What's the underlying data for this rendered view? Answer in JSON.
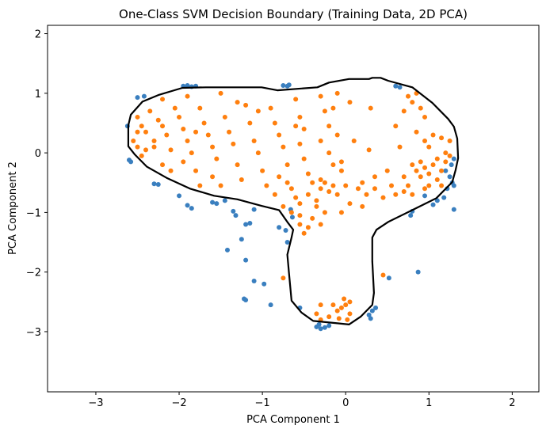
{
  "chart_data": {
    "type": "scatter",
    "title": "One-Class SVM Decision Boundary (Training Data, 2D PCA)",
    "xlabel": "PCA Component 1",
    "ylabel": "PCA Component 2",
    "xlim": [
      -3.58,
      2.32
    ],
    "ylim": [
      -4.01,
      2.14
    ],
    "xticks": [
      -3,
      -2,
      -1,
      0,
      1,
      2
    ],
    "yticks": [
      2,
      1,
      0,
      -1,
      -2,
      -3
    ],
    "xtick_labels": [
      "−3",
      "−2",
      "−1",
      "0",
      "1",
      "2"
    ],
    "ytick_labels": [
      "2",
      "1",
      "0",
      "−1",
      "−2",
      "−3"
    ],
    "grid": false,
    "series": [
      {
        "color": "#3a7fbf",
        "points": [
          [
            -1.95,
            1.12
          ],
          [
            -1.9,
            1.13
          ],
          [
            -1.85,
            1.11
          ],
          [
            -1.8,
            1.12
          ],
          [
            -0.75,
            1.13
          ],
          [
            -0.7,
            1.12
          ],
          [
            -0.68,
            1.14
          ],
          [
            -2.5,
            0.93
          ],
          [
            -2.42,
            0.95
          ],
          [
            -2.62,
            0.45
          ],
          [
            -2.6,
            -0.12
          ],
          [
            -2.58,
            -0.15
          ],
          [
            -2.3,
            -0.52
          ],
          [
            -2.25,
            -0.53
          ],
          [
            -1.9,
            -0.88
          ],
          [
            -1.85,
            -0.93
          ],
          [
            -1.6,
            -0.83
          ],
          [
            -1.55,
            -0.85
          ],
          [
            -1.35,
            -0.98
          ],
          [
            -1.32,
            -1.05
          ],
          [
            -1.2,
            -1.2
          ],
          [
            -1.15,
            -1.18
          ],
          [
            -1.25,
            -1.45
          ],
          [
            -1.42,
            -1.63
          ],
          [
            -1.2,
            -1.8
          ],
          [
            -1.1,
            -2.15
          ],
          [
            -0.98,
            -2.2
          ],
          [
            -1.22,
            -2.45
          ],
          [
            -1.2,
            -2.47
          ],
          [
            -0.9,
            -2.55
          ],
          [
            -0.72,
            -1.3
          ],
          [
            -0.7,
            -1.5
          ],
          [
            -0.66,
            -0.95
          ],
          [
            -0.64,
            -1.08
          ],
          [
            -0.8,
            -1.25
          ],
          [
            -0.35,
            -2.92
          ],
          [
            -0.3,
            -2.95
          ],
          [
            -0.25,
            -2.93
          ],
          [
            -0.32,
            -2.88
          ],
          [
            -0.2,
            -2.9
          ],
          [
            -0.55,
            -2.6
          ],
          [
            0.28,
            -2.72
          ],
          [
            0.32,
            -2.65
          ],
          [
            0.36,
            -2.6
          ],
          [
            0.3,
            -2.78
          ],
          [
            0.52,
            -2.1
          ],
          [
            0.87,
            -2.0
          ],
          [
            1.2,
            -0.3
          ],
          [
            1.25,
            -0.4
          ],
          [
            1.28,
            -0.5
          ],
          [
            1.22,
            -0.6
          ],
          [
            1.3,
            -0.55
          ],
          [
            1.18,
            -0.75
          ],
          [
            1.1,
            -0.8
          ],
          [
            1.3,
            -0.95
          ],
          [
            1.05,
            -0.87
          ],
          [
            0.95,
            -0.72
          ],
          [
            0.78,
            -1.05
          ],
          [
            0.8,
            -0.98
          ],
          [
            1.27,
            -0.2
          ],
          [
            1.3,
            -0.1
          ],
          [
            0.6,
            1.12
          ],
          [
            0.65,
            1.1
          ],
          [
            -1.45,
            -0.8
          ],
          [
            -2.0,
            -0.72
          ],
          [
            -1.1,
            -0.95
          ]
        ]
      },
      {
        "color": "#ff7f0e",
        "points": [
          [
            -2.5,
            0.6
          ],
          [
            -2.45,
            0.45
          ],
          [
            -2.4,
            0.35
          ],
          [
            -2.55,
            0.2
          ],
          [
            -2.5,
            0.1
          ],
          [
            -2.4,
            0.05
          ],
          [
            -2.45,
            -0.05
          ],
          [
            -2.3,
            0.2
          ],
          [
            -2.25,
            0.55
          ],
          [
            -2.2,
            0.45
          ],
          [
            -2.15,
            0.3
          ],
          [
            -2.1,
            0.05
          ],
          [
            -2.2,
            -0.2
          ],
          [
            -2.1,
            -0.3
          ],
          [
            -2.0,
            0.6
          ],
          [
            -1.95,
            0.4
          ],
          [
            -1.9,
            0.2
          ],
          [
            -1.85,
            0.0
          ],
          [
            -1.95,
            -0.15
          ],
          [
            -1.8,
            -0.3
          ],
          [
            -1.75,
            0.75
          ],
          [
            -1.7,
            0.5
          ],
          [
            -1.65,
            0.3
          ],
          [
            -1.6,
            0.1
          ],
          [
            -1.55,
            -0.1
          ],
          [
            -1.6,
            -0.4
          ],
          [
            -1.5,
            -0.55
          ],
          [
            -1.45,
            0.6
          ],
          [
            -1.4,
            0.35
          ],
          [
            -1.35,
            0.15
          ],
          [
            -1.3,
            -0.2
          ],
          [
            -1.25,
            -0.45
          ],
          [
            -1.2,
            0.8
          ],
          [
            -1.15,
            0.5
          ],
          [
            -1.1,
            0.2
          ],
          [
            -1.05,
            0.0
          ],
          [
            -1.0,
            -0.3
          ],
          [
            -0.95,
            -0.55
          ],
          [
            -2.2,
            0.9
          ],
          [
            -1.9,
            0.95
          ],
          [
            -1.5,
            1.0
          ],
          [
            -2.35,
            0.7
          ],
          [
            -2.05,
            0.75
          ],
          [
            -1.75,
            -0.55
          ],
          [
            -0.9,
            0.75
          ],
          [
            -0.85,
            0.5
          ],
          [
            -0.8,
            0.3
          ],
          [
            -0.75,
            0.1
          ],
          [
            -0.7,
            -0.2
          ],
          [
            -0.8,
            -0.4
          ],
          [
            -0.85,
            -0.7
          ],
          [
            -0.75,
            -0.9
          ],
          [
            -0.65,
            -1.0
          ],
          [
            -0.6,
            0.9
          ],
          [
            -0.55,
            0.6
          ],
          [
            -0.5,
            0.4
          ],
          [
            -0.55,
            0.15
          ],
          [
            -0.5,
            -0.1
          ],
          [
            -0.45,
            -0.35
          ],
          [
            -0.4,
            -0.5
          ],
          [
            -0.45,
            -0.7
          ],
          [
            -0.35,
            -0.8
          ],
          [
            -0.3,
            -0.6
          ],
          [
            -0.25,
            -0.5
          ],
          [
            -0.2,
            -0.65
          ],
          [
            -0.15,
            -0.55
          ],
          [
            -0.1,
            -0.7
          ],
          [
            -0.3,
            -0.45
          ],
          [
            -0.35,
            -0.9
          ],
          [
            -0.25,
            -1.0
          ],
          [
            -0.4,
            -1.1
          ],
          [
            -0.55,
            -1.2
          ],
          [
            -0.5,
            -1.35
          ],
          [
            -0.3,
            0.95
          ],
          [
            -0.25,
            0.7
          ],
          [
            -0.2,
            0.45
          ],
          [
            -0.3,
            0.2
          ],
          [
            -0.2,
            0.0
          ],
          [
            -0.15,
            -0.2
          ],
          [
            -0.05,
            -0.3
          ],
          [
            0.0,
            -0.55
          ],
          [
            -0.65,
            -0.6
          ],
          [
            -0.6,
            -0.75
          ],
          [
            -0.55,
            -0.85
          ],
          [
            -0.7,
            -0.5
          ],
          [
            -0.1,
            0.3
          ],
          [
            0.1,
            0.2
          ],
          [
            0.15,
            -0.6
          ],
          [
            0.25,
            -0.7
          ],
          [
            0.35,
            -0.6
          ],
          [
            0.45,
            -0.75
          ],
          [
            0.05,
            -0.85
          ],
          [
            -0.05,
            -1.0
          ],
          [
            0.2,
            -0.9
          ],
          [
            -0.1,
            1.0
          ],
          [
            0.05,
            0.85
          ],
          [
            0.3,
            0.75
          ],
          [
            0.28,
            0.05
          ],
          [
            0.5,
            -0.3
          ],
          [
            0.55,
            -0.55
          ],
          [
            0.6,
            -0.7
          ],
          [
            0.7,
            -0.4
          ],
          [
            0.65,
            0.1
          ],
          [
            0.6,
            0.45
          ],
          [
            0.7,
            0.7
          ],
          [
            0.75,
            0.95
          ],
          [
            0.8,
            0.85
          ],
          [
            0.85,
            1.0
          ],
          [
            0.9,
            0.75
          ],
          [
            0.95,
            0.6
          ],
          [
            0.85,
            0.35
          ],
          [
            0.95,
            0.2
          ],
          [
            1.0,
            0.1
          ],
          [
            1.05,
            0.3
          ],
          [
            1.15,
            0.25
          ],
          [
            1.25,
            0.2
          ],
          [
            0.8,
            -0.2
          ],
          [
            0.85,
            -0.3
          ],
          [
            0.9,
            -0.4
          ],
          [
            0.95,
            -0.25
          ],
          [
            1.0,
            -0.35
          ],
          [
            1.05,
            -0.2
          ],
          [
            1.1,
            -0.45
          ],
          [
            1.15,
            -0.3
          ],
          [
            1.2,
            -0.15
          ],
          [
            1.25,
            -0.05
          ],
          [
            1.1,
            -0.1
          ],
          [
            1.0,
            -0.55
          ],
          [
            0.95,
            -0.6
          ],
          [
            0.75,
            -0.55
          ],
          [
            0.7,
            -0.65
          ],
          [
            1.15,
            -0.55
          ],
          [
            1.2,
            0.0
          ],
          [
            0.9,
            -0.15
          ],
          [
            0.8,
            -0.7
          ],
          [
            -0.15,
            -2.55
          ],
          [
            -0.1,
            -2.65
          ],
          [
            -0.05,
            -2.6
          ],
          [
            0.0,
            -2.55
          ],
          [
            0.05,
            -2.7
          ],
          [
            -0.08,
            -2.78
          ],
          [
            0.02,
            -2.8
          ],
          [
            -0.2,
            -2.75
          ],
          [
            -0.3,
            -2.8
          ],
          [
            -0.35,
            -2.7
          ],
          [
            -0.3,
            -2.55
          ],
          [
            -0.02,
            -2.45
          ],
          [
            0.05,
            -2.5
          ],
          [
            -0.75,
            -2.1
          ],
          [
            0.45,
            -2.05
          ],
          [
            -0.55,
            -1.05
          ],
          [
            -0.45,
            -1.25
          ],
          [
            -0.3,
            -1.2
          ],
          [
            -0.6,
            0.45
          ],
          [
            -1.05,
            0.7
          ],
          [
            -1.3,
            0.85
          ],
          [
            -2.3,
            0.1
          ],
          [
            -2.5,
            0.35
          ],
          [
            -1.8,
            0.35
          ],
          [
            -0.15,
            0.75
          ],
          [
            0.2,
            -0.5
          ],
          [
            0.35,
            -0.4
          ],
          [
            -0.05,
            -0.15
          ]
        ]
      }
    ],
    "boundary": {
      "color": "#000000",
      "points": [
        [
          -2.61,
          0.46
        ],
        [
          -2.58,
          0.64
        ],
        [
          -2.44,
          0.86
        ],
        [
          -2.25,
          0.97
        ],
        [
          -1.96,
          1.09
        ],
        [
          -1.68,
          1.1
        ],
        [
          -1.01,
          1.1
        ],
        [
          -0.82,
          1.05
        ],
        [
          -0.34,
          1.1
        ],
        [
          -0.2,
          1.18
        ],
        [
          0.04,
          1.24
        ],
        [
          0.28,
          1.24
        ],
        [
          0.32,
          1.26
        ],
        [
          0.42,
          1.26
        ],
        [
          0.51,
          1.21
        ],
        [
          0.8,
          1.1
        ],
        [
          1.04,
          0.84
        ],
        [
          1.23,
          0.57
        ],
        [
          1.3,
          0.44
        ],
        [
          1.34,
          0.24
        ],
        [
          1.35,
          -0.09
        ],
        [
          1.32,
          -0.29
        ],
        [
          1.28,
          -0.49
        ],
        [
          1.09,
          -0.76
        ],
        [
          0.8,
          -0.96
        ],
        [
          0.51,
          -1.16
        ],
        [
          0.37,
          -1.29
        ],
        [
          0.32,
          -1.42
        ],
        [
          0.32,
          -1.82
        ],
        [
          0.34,
          -2.35
        ],
        [
          0.32,
          -2.55
        ],
        [
          0.18,
          -2.75
        ],
        [
          0.04,
          -2.88
        ],
        [
          -0.1,
          -2.86
        ],
        [
          -0.39,
          -2.82
        ],
        [
          -0.53,
          -2.68
        ],
        [
          -0.65,
          -2.48
        ],
        [
          -0.68,
          -2.02
        ],
        [
          -0.7,
          -1.71
        ],
        [
          -0.65,
          -1.42
        ],
        [
          -0.63,
          -1.29
        ],
        [
          -0.7,
          -1.16
        ],
        [
          -0.8,
          -0.96
        ],
        [
          -1.01,
          -0.89
        ],
        [
          -1.3,
          -0.78
        ],
        [
          -1.58,
          -0.72
        ],
        [
          -1.87,
          -0.6
        ],
        [
          -2.15,
          -0.42
        ],
        [
          -2.39,
          -0.23
        ],
        [
          -2.53,
          -0.03
        ],
        [
          -2.61,
          0.11
        ]
      ]
    }
  }
}
